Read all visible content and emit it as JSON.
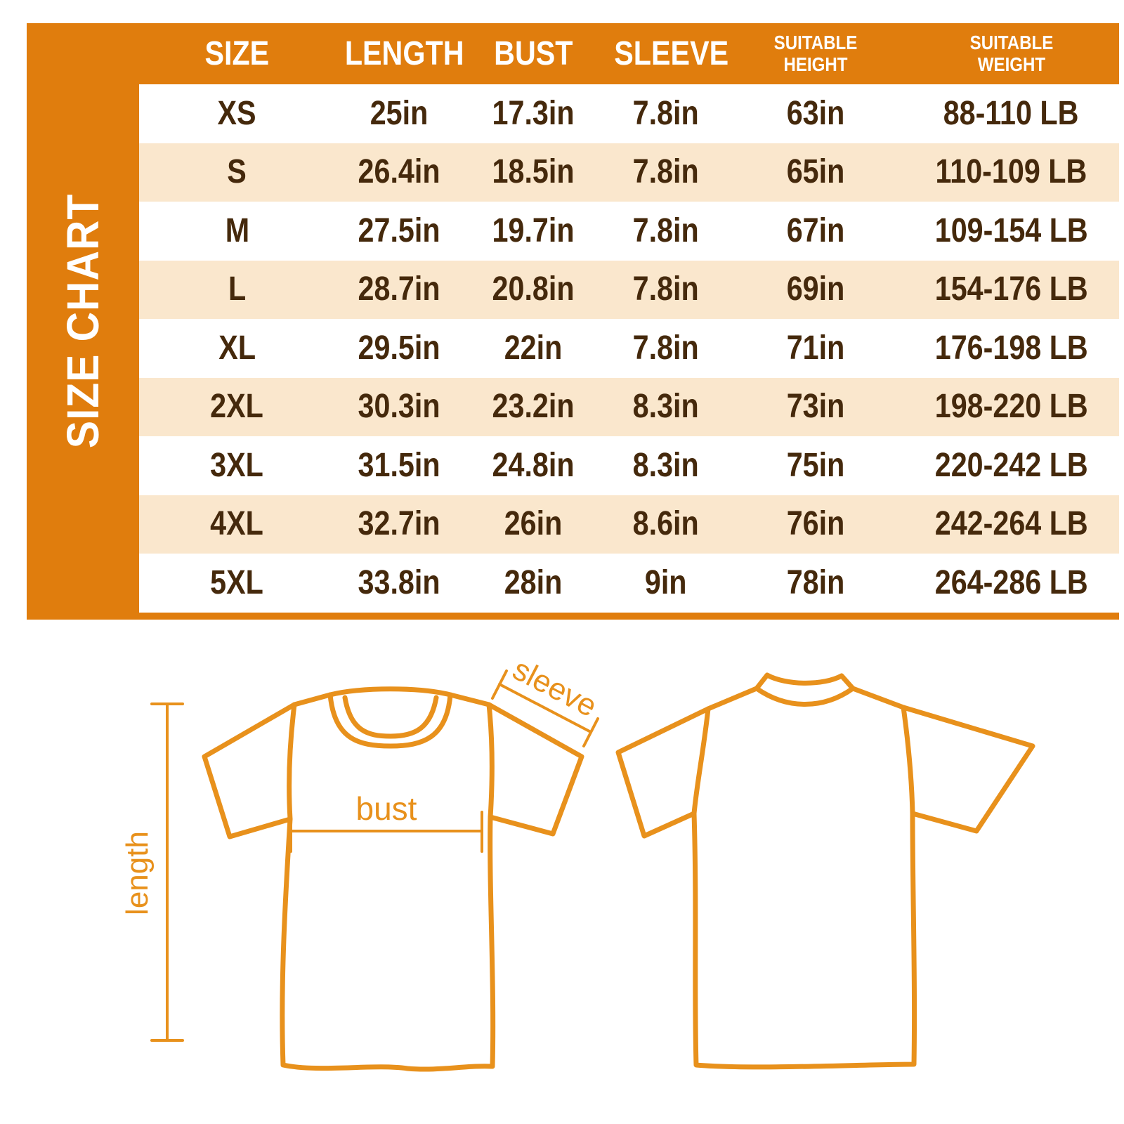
{
  "colors": {
    "orange_background": "#E07D0D",
    "peach_row": "#FAE7CD",
    "white_row": "#FFFFFF",
    "brown_text": "#45290C",
    "diagram_line_orange": "#E8911C"
  },
  "side_label": "SIZE CHART",
  "chart_data": {
    "type": "table",
    "title": "SIZE CHART",
    "columns": [
      "SIZE",
      "LENGTH",
      "BUST",
      "SLEEVE",
      "SUITABLE HEIGHT",
      "SUITABLE WEIGHT"
    ],
    "columns_lines": [
      [
        "SIZE"
      ],
      [
        "LENGTH"
      ],
      [
        "BUST"
      ],
      [
        "SLEEVE"
      ],
      [
        "SUITABLE",
        "HEIGHT"
      ],
      [
        "SUITABLE",
        "WEIGHT"
      ]
    ],
    "rows": [
      [
        "XS",
        "25in",
        "17.3in",
        "7.8in",
        "63in",
        "88-110 LB"
      ],
      [
        "S",
        "26.4in",
        "18.5in",
        "7.8in",
        "65in",
        "110-109 LB"
      ],
      [
        "M",
        "27.5in",
        "19.7in",
        "7.8in",
        "67in",
        "109-154 LB"
      ],
      [
        "L",
        "28.7in",
        "20.8in",
        "7.8in",
        "69in",
        "154-176 LB"
      ],
      [
        "XL",
        "29.5in",
        "22in",
        "7.8in",
        "71in",
        "176-198 LB"
      ],
      [
        "2XL",
        "30.3in",
        "23.2in",
        "8.3in",
        "73in",
        "198-220 LB"
      ],
      [
        "3XL",
        "31.5in",
        "24.8in",
        "8.3in",
        "75in",
        "220-242 LB"
      ],
      [
        "4XL",
        "32.7in",
        "26in",
        "8.6in",
        "76in",
        "242-264 LB"
      ],
      [
        "5XL",
        "33.8in",
        "28in",
        "9in",
        "78in",
        "264-286 LB"
      ]
    ],
    "layout_hints": {
      "header_on_orange": true,
      "alternating_rows": true
    }
  },
  "diagram": {
    "labels": {
      "sleeve": "sleeve",
      "bust": "bust",
      "length": "length"
    },
    "views": [
      "front",
      "back"
    ]
  }
}
